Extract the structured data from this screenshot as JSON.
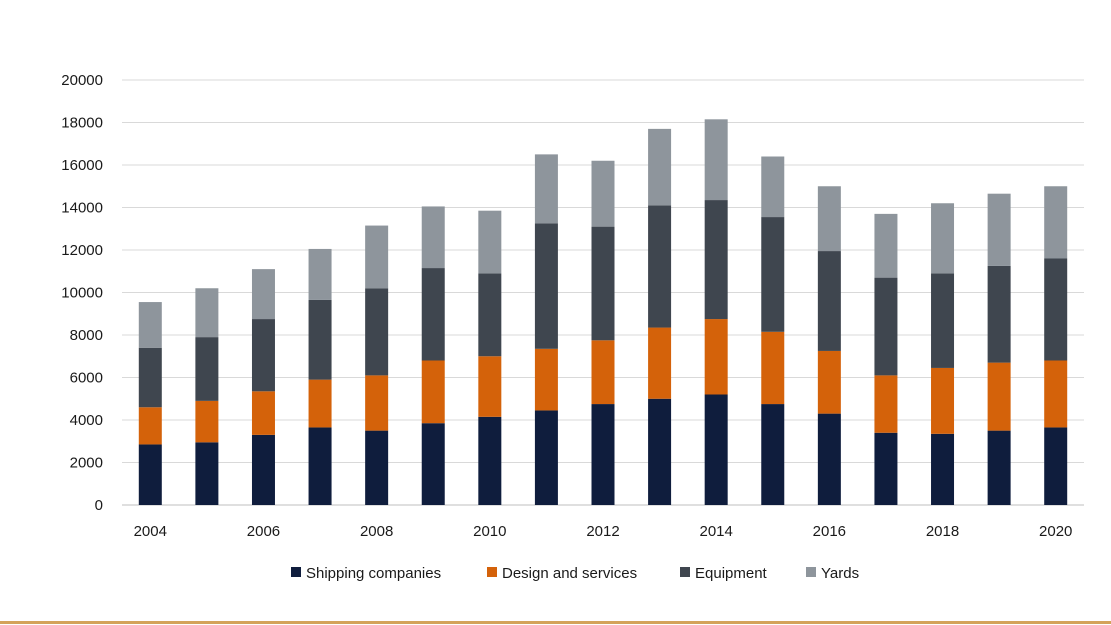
{
  "chart_data": {
    "type": "bar",
    "stacked": true,
    "title": "",
    "xlabel": "",
    "ylabel": "",
    "ylim": [
      0,
      20000
    ],
    "y_ticks": [
      0,
      2000,
      4000,
      6000,
      8000,
      10000,
      12000,
      14000,
      16000,
      18000,
      20000
    ],
    "categories": [
      "2004",
      "2005",
      "2006",
      "2007",
      "2008",
      "2009",
      "2010",
      "2011",
      "2012",
      "2013",
      "2014",
      "2015",
      "2016",
      "2017",
      "2018",
      "2019",
      "2020"
    ],
    "x_tick_labels": [
      "2004",
      "2006",
      "2008",
      "2010",
      "2012",
      "2014",
      "2016",
      "2018",
      "2020"
    ],
    "grid": true,
    "legend_position": "bottom",
    "series": [
      {
        "name": "Shipping companies",
        "color": "#0f1d3d",
        "values": [
          2850,
          2950,
          3300,
          3650,
          3500,
          3850,
          4150,
          4450,
          4750,
          5000,
          5200,
          4750,
          4300,
          3400,
          3350,
          3500,
          3650
        ]
      },
      {
        "name": "Design and services",
        "color": "#d4620a",
        "values": [
          1750,
          1950,
          2050,
          2250,
          2600,
          2950,
          2850,
          2900,
          3000,
          3350,
          3550,
          3400,
          2950,
          2700,
          3100,
          3200,
          3150
        ]
      },
      {
        "name": "Equipment",
        "color": "#3f464f",
        "values": [
          2800,
          3000,
          3400,
          3750,
          4100,
          4350,
          3900,
          5900,
          5350,
          5750,
          5600,
          5400,
          4700,
          4600,
          4450,
          4550,
          4800
        ]
      },
      {
        "name": "Yards",
        "color": "#8e959c",
        "values": [
          2150,
          2300,
          2350,
          2400,
          2950,
          2900,
          2950,
          3250,
          3100,
          3600,
          3800,
          2850,
          3050,
          3000,
          3300,
          3400,
          3400
        ]
      }
    ]
  },
  "colors": {
    "bottom_rule": "#d4a35a",
    "gridline": "#d9d9d9"
  }
}
